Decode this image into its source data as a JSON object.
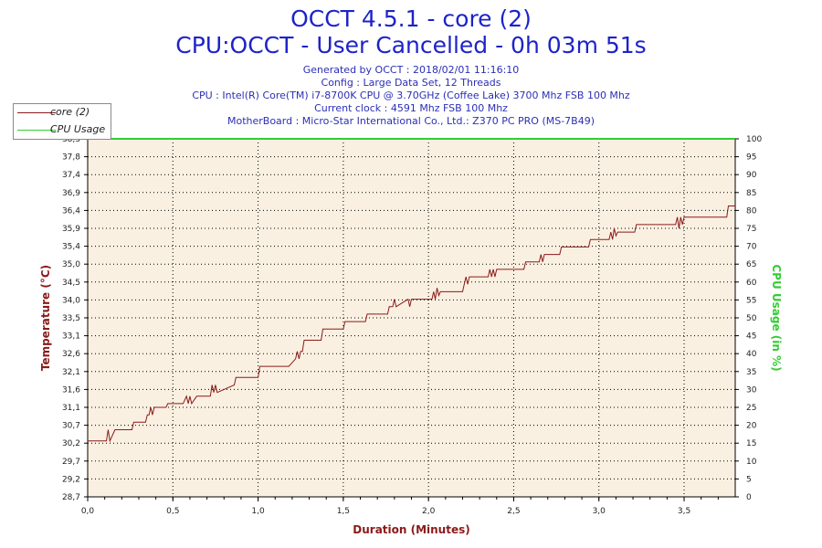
{
  "header": {
    "title": "OCCT 4.5.1 - core (2)",
    "subtitle": "CPU:OCCT - User Cancelled - 0h 03m 51s",
    "info_lines": [
      "Generated by OCCT : 2018/02/01 11:16:10",
      "Config : Large Data Set, 12 Threads",
      "CPU : Intel(R) Core(TM) i7-8700K CPU @ 3.70GHz (Coffee Lake) 3700 Mhz FSB 100 Mhz",
      "Current clock : 4591 Mhz FSB 100 Mhz",
      "MotherBoard : Micro-Star International Co., Ltd.: Z370 PC PRO (MS-7B49)"
    ]
  },
  "legend": [
    {
      "label": "core (2)",
      "color": "#8b1a1a"
    },
    {
      "label": "CPU Usage",
      "color": "#33cc33"
    }
  ],
  "colors": {
    "plot_background": "#faf0e1",
    "temperature": "#8b1a1a",
    "cpu_usage": "#33cc33",
    "grid": "#000000"
  },
  "chart_data": {
    "type": "line",
    "xlabel": "Duration (Minutes)",
    "ylabel": "Temperature (°C)",
    "y2label": "CPU Usage (in %)",
    "xlim": [
      0,
      3.8
    ],
    "ylim": [
      28.7,
      38.3
    ],
    "y2lim": [
      0,
      100
    ],
    "grid": true,
    "x_ticks": [
      "0,0",
      "0,5",
      "1,0",
      "1,5",
      "2,0",
      "2,5",
      "3,0",
      "3,5"
    ],
    "y_ticks": [
      "28,7",
      "29,2",
      "29,7",
      "30,2",
      "30,7",
      "31,1",
      "31,6",
      "32,1",
      "32,6",
      "33,1",
      "33,5",
      "34,0",
      "34,5",
      "35,0",
      "35,4",
      "35,9",
      "36,4",
      "36,9",
      "37,4",
      "37,8",
      "38,3"
    ],
    "y2_ticks": [
      "0",
      "5",
      "10",
      "15",
      "20",
      "25",
      "30",
      "35",
      "40",
      "45",
      "50",
      "55",
      "60",
      "65",
      "70",
      "75",
      "80",
      "85",
      "90",
      "95",
      "100"
    ],
    "series": [
      {
        "name": "core (2)",
        "axis": "left",
        "x": [
          0.0,
          0.11,
          0.12,
          0.13,
          0.16,
          0.26,
          0.27,
          0.28,
          0.34,
          0.35,
          0.36,
          0.37,
          0.38,
          0.39,
          0.46,
          0.47,
          0.56,
          0.58,
          0.59,
          0.6,
          0.61,
          0.64,
          0.72,
          0.73,
          0.74,
          0.75,
          0.76,
          0.86,
          0.87,
          1.0,
          1.01,
          1.15,
          1.18,
          1.22,
          1.23,
          1.24,
          1.25,
          1.26,
          1.27,
          1.28,
          1.37,
          1.38,
          1.5,
          1.51,
          1.63,
          1.64,
          1.76,
          1.77,
          1.79,
          1.8,
          1.81,
          1.88,
          1.89,
          1.9,
          1.92,
          1.93,
          2.02,
          2.03,
          2.04,
          2.05,
          2.06,
          2.07,
          2.11,
          2.2,
          2.21,
          2.22,
          2.23,
          2.24,
          2.35,
          2.36,
          2.37,
          2.38,
          2.39,
          2.4,
          2.56,
          2.57,
          2.65,
          2.66,
          2.67,
          2.68,
          2.69,
          2.77,
          2.78,
          2.94,
          2.95,
          3.06,
          3.07,
          3.08,
          3.09,
          3.1,
          3.11,
          3.12,
          3.21,
          3.22,
          3.45,
          3.46,
          3.47,
          3.48,
          3.49,
          3.5,
          3.51,
          3.75,
          3.76,
          3.8
        ],
        "values": [
          30.2,
          30.2,
          30.5,
          30.2,
          30.5,
          30.5,
          30.7,
          30.7,
          30.7,
          30.9,
          30.9,
          31.1,
          30.9,
          31.1,
          31.1,
          31.2,
          31.2,
          31.4,
          31.2,
          31.4,
          31.2,
          31.4,
          31.4,
          31.7,
          31.5,
          31.7,
          31.5,
          31.7,
          31.9,
          31.9,
          32.2,
          32.2,
          32.2,
          32.4,
          32.6,
          32.4,
          32.6,
          32.6,
          32.9,
          32.9,
          32.9,
          33.2,
          33.2,
          33.4,
          33.4,
          33.6,
          33.6,
          33.8,
          33.8,
          34.0,
          33.8,
          34.0,
          33.8,
          34.0,
          34.0,
          34.0,
          34.0,
          34.2,
          34.0,
          34.3,
          34.1,
          34.2,
          34.2,
          34.2,
          34.4,
          34.6,
          34.4,
          34.6,
          34.6,
          34.8,
          34.6,
          34.8,
          34.6,
          34.8,
          34.8,
          35.0,
          35.0,
          35.2,
          35.0,
          35.2,
          35.2,
          35.2,
          35.4,
          35.4,
          35.6,
          35.6,
          35.8,
          35.6,
          35.9,
          35.7,
          35.8,
          35.8,
          35.8,
          36.0,
          36.0,
          36.2,
          35.9,
          36.2,
          36.0,
          36.2,
          36.2,
          36.2,
          36.5,
          36.5
        ]
      },
      {
        "name": "CPU Usage",
        "axis": "right",
        "x": [
          0.0,
          3.8
        ],
        "values": [
          100,
          100
        ]
      }
    ]
  }
}
